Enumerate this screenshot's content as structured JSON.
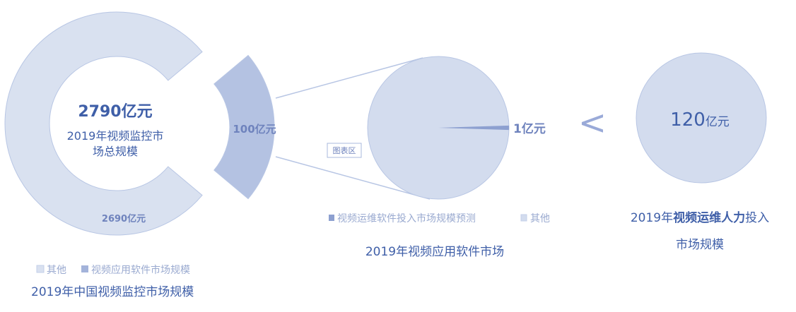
{
  "colors": {
    "ring": "#d9e1f0",
    "ring_stroke": "#b8c6e4",
    "slice": "#b4c2e2",
    "pie": "#d3dcee",
    "sliver": "#8da0d0",
    "text_dark": "#3f5fa8",
    "text_light": "#9aaad0"
  },
  "chart_data": [
    {
      "type": "pie",
      "variant": "donut",
      "title": "2019年中国视频监控市场规模",
      "center_value": "2790亿元",
      "center_label": "2019年视频监控市场总规模",
      "center_label_lines": [
        "2019年视频监控市",
        "场总规模"
      ],
      "categories": [
        "其他",
        "视频应用软件市场规模"
      ],
      "values": [
        2690,
        100
      ],
      "value_labels": [
        "2690亿元",
        "100亿元"
      ],
      "unit": "亿元",
      "legend": [
        "其他",
        "视频应用软件市场规模"
      ],
      "legend_placement": "bottom",
      "exploded": "视频应用软件市场规模"
    },
    {
      "type": "pie",
      "title": "2019年视频应用软件市场",
      "categories": [
        "视频运维软件投入市场规模预测",
        "其他"
      ],
      "values": [
        1,
        99
      ],
      "value_labels": [
        "1亿元"
      ],
      "unit": "亿元",
      "legend": [
        "视频运维软件投入市场规模预测",
        "其他"
      ],
      "legend_placement": "bottom",
      "tooltip": "图表区"
    },
    {
      "type": "pie",
      "title_parts": [
        "2019年",
        "视频运维人力",
        "投入"
      ],
      "title_line2": "市场规模",
      "values": [
        120
      ],
      "value_labels": [
        "120亿元"
      ],
      "value_number": "120",
      "value_unit": "亿元",
      "unit": "亿元"
    }
  ],
  "comparison_symbol": "<"
}
